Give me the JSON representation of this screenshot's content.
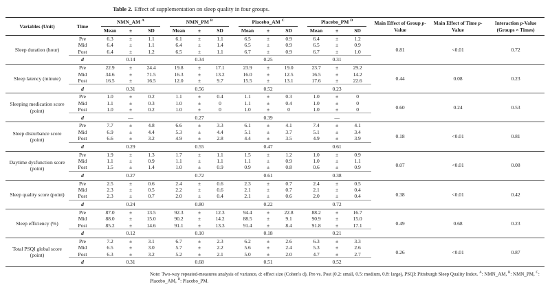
{
  "title": {
    "label": "Table 2.",
    "text": "Effect of supplementation on sleep quality in four groups."
  },
  "table": {
    "pm": "±",
    "col_variables": "Variables (Unit)",
    "col_time": "Time",
    "subcols": [
      "Mean",
      "±",
      "SD"
    ],
    "groups": [
      {
        "name": "NMN_AM",
        "sup": "A"
      },
      {
        "name": "NMN_PM",
        "sup": "B"
      },
      {
        "name": "Placebo_AM",
        "sup": "C"
      },
      {
        "name": "Placebo_PM",
        "sup": "D"
      }
    ],
    "effect_cols": [
      "Main Effect of Group p-Value",
      "Main Effect of Time p-Value",
      "Interaction p-Value (Groups × Times)"
    ],
    "d_label": "d",
    "time_labels": [
      "Pre",
      "Mid",
      "Post"
    ],
    "variables": [
      {
        "label": "Sleep duration (hour)",
        "rows": [
          [
            [
              "6.3",
              "1.1"
            ],
            [
              "6.1",
              "1.1"
            ],
            [
              "6.5",
              "0.9"
            ],
            [
              "6.4",
              "1.2"
            ]
          ],
          [
            [
              "6.4",
              "1.1"
            ],
            [
              "6.4",
              "1.4"
            ],
            [
              "6.5",
              "0.9"
            ],
            [
              "6.5",
              "0.9"
            ]
          ],
          [
            [
              "6.4",
              "1.2"
            ],
            [
              "6.5",
              "1.1"
            ],
            [
              "6.7",
              "0.9"
            ],
            [
              "6.7",
              "1.0"
            ]
          ]
        ],
        "d": [
          "0.14",
          "0.34",
          "0.25",
          "0.31"
        ],
        "p_group": "0.81",
        "p_time": "<0.01",
        "p_interaction": "0.72"
      },
      {
        "label": "Sleep latency (minute)",
        "rows": [
          [
            [
              "22.9",
              "24.4"
            ],
            [
              "19.8",
              "17.1"
            ],
            [
              "23.9",
              "19.0"
            ],
            [
              "23.7",
              "29.2"
            ]
          ],
          [
            [
              "34.6",
              "71.5"
            ],
            [
              "16.3",
              "13.2"
            ],
            [
              "16.0",
              "12.5"
            ],
            [
              "16.5",
              "14.2"
            ]
          ],
          [
            [
              "16.5",
              "16.5"
            ],
            [
              "12.0",
              "9.7"
            ],
            [
              "15.5",
              "13.1"
            ],
            [
              "17.6",
              "22.6"
            ]
          ]
        ],
        "d": [
          "0.31",
          "0.56",
          "0.52",
          "0.23"
        ],
        "p_group": "0.44",
        "p_time": "0.08",
        "p_interaction": "0.23"
      },
      {
        "label": "Sleeping medication score (point)",
        "rows": [
          [
            [
              "1.0",
              "0.2"
            ],
            [
              "1.1",
              "0.4"
            ],
            [
              "1.1",
              "0.3"
            ],
            [
              "1.0",
              "0"
            ]
          ],
          [
            [
              "1.1",
              "0.3"
            ],
            [
              "1.0",
              "0"
            ],
            [
              "1.1",
              "0.4"
            ],
            [
              "1.0",
              "0"
            ]
          ],
          [
            [
              "1.0",
              "0.2"
            ],
            [
              "1.0",
              "0"
            ],
            [
              "1.0",
              "0"
            ],
            [
              "1.0",
              "0"
            ]
          ]
        ],
        "d": [
          "—",
          "0.27",
          "0.39",
          "—"
        ],
        "p_group": "0.60",
        "p_time": "0.24",
        "p_interaction": "0.53"
      },
      {
        "label": "Sleep disturbance score (point)",
        "rows": [
          [
            [
              "7.7",
              "4.8"
            ],
            [
              "6.6",
              "3.3"
            ],
            [
              "6.1",
              "4.1"
            ],
            [
              "7.4",
              "4.1"
            ]
          ],
          [
            [
              "6.9",
              "4.4"
            ],
            [
              "5.3",
              "4.4"
            ],
            [
              "5.1",
              "3.7"
            ],
            [
              "5.1",
              "3.4"
            ]
          ],
          [
            [
              "6.6",
              "3.2"
            ],
            [
              "4.9",
              "2.8"
            ],
            [
              "4.4",
              "3.5"
            ],
            [
              "4.9",
              "3.9"
            ]
          ]
        ],
        "d": [
          "0.29",
          "0.55",
          "0.47",
          "0.61"
        ],
        "p_group": "0.18",
        "p_time": "<0.01",
        "p_interaction": "0.81"
      },
      {
        "label": "Daytime dysfunction score (point)",
        "rows": [
          [
            [
              "1.9",
              "1.3"
            ],
            [
              "1.7",
              "1.1"
            ],
            [
              "1.5",
              "1.2"
            ],
            [
              "1.0",
              "0.9"
            ]
          ],
          [
            [
              "1.1",
              "0.9"
            ],
            [
              "1.1",
              "1.1"
            ],
            [
              "1.1",
              "0.9"
            ],
            [
              "1.0",
              "1.1"
            ]
          ],
          [
            [
              "1.5",
              "1.4"
            ],
            [
              "1.0",
              "0.9"
            ],
            [
              "0.9",
              "0.8"
            ],
            [
              "0.6",
              "0.9"
            ]
          ]
        ],
        "d": [
          "0.27",
          "0.72",
          "0.61",
          "0.38"
        ],
        "p_group": "0.07",
        "p_time": "<0.01",
        "p_interaction": "0.08"
      },
      {
        "label": "Sleep quality score (point)",
        "rows": [
          [
            [
              "2.5",
              "0.6"
            ],
            [
              "2.4",
              "0.6"
            ],
            [
              "2.3",
              "0.7"
            ],
            [
              "2.4",
              "0.5"
            ]
          ],
          [
            [
              "2.3",
              "0.5"
            ],
            [
              "2.2",
              "0.6"
            ],
            [
              "2.1",
              "0.7"
            ],
            [
              "2.1",
              "0.4"
            ]
          ],
          [
            [
              "2.3",
              "0.7"
            ],
            [
              "2.0",
              "0.4"
            ],
            [
              "2.1",
              "0.6"
            ],
            [
              "2.0",
              "0.4"
            ]
          ]
        ],
        "d": [
          "0.24",
          "0.80",
          "0.22",
          "0.72"
        ],
        "p_group": "0.38",
        "p_time": "<0.01",
        "p_interaction": "0.42"
      },
      {
        "label": "Sleep efficiency (%)",
        "rows": [
          [
            [
              "87.0",
              "13.5"
            ],
            [
              "92.3",
              "12.3"
            ],
            [
              "94.4",
              "22.8"
            ],
            [
              "88.2",
              "16.7"
            ]
          ],
          [
            [
              "88.0",
              "15.0"
            ],
            [
              "90.2",
              "14.2"
            ],
            [
              "88.5",
              "9.1"
            ],
            [
              "90.9",
              "15.0"
            ]
          ],
          [
            [
              "85.2",
              "14.6"
            ],
            [
              "91.1",
              "13.3"
            ],
            [
              "91.4",
              "8.4"
            ],
            [
              "91.8",
              "17.1"
            ]
          ]
        ],
        "d": [
          "0.12",
          "0.10",
          "0.18",
          "0.21"
        ],
        "p_group": "0.49",
        "p_time": "0.68",
        "p_interaction": "0.23"
      },
      {
        "label": "Total PSQI global score (point)",
        "rows": [
          [
            [
              "7.2",
              "3.1"
            ],
            [
              "6.7",
              "2.3"
            ],
            [
              "6.2",
              "2.6"
            ],
            [
              "6.3",
              "3.3"
            ]
          ],
          [
            [
              "6.5",
              "3.0"
            ],
            [
              "5.7",
              "2.2"
            ],
            [
              "5.6",
              "2.4"
            ],
            [
              "5.3",
              "2.6"
            ]
          ],
          [
            [
              "6.3",
              "3.2"
            ],
            [
              "5.2",
              "2.1"
            ],
            [
              "5.0",
              "2.0"
            ],
            [
              "4.7",
              "2.7"
            ]
          ]
        ],
        "d": [
          "0.31",
          "0.68",
          "0.51",
          "0.52"
        ],
        "p_group": "0.26",
        "p_time": "<0.01",
        "p_interaction": "0.87"
      }
    ]
  },
  "note": {
    "segments": [
      {
        "t": "Note: Two-way repeated-measures analysis of variance, d: effect size (Cohen's d), Pre vs. Post (0.2: small, 0.5: medium, 0.8: large), PSQI: Pittsburgh Sleep Quality Index. "
      },
      {
        "t": "A",
        "sup": true
      },
      {
        "t": ": NMN_AM, "
      },
      {
        "t": "B",
        "sup": true
      },
      {
        "t": ": NMN_PM, "
      },
      {
        "t": "C",
        "sup": true
      },
      {
        "t": ": Placebo_AM, "
      },
      {
        "t": "D",
        "sup": true
      },
      {
        "t": ": Placebo_PM."
      }
    ]
  }
}
